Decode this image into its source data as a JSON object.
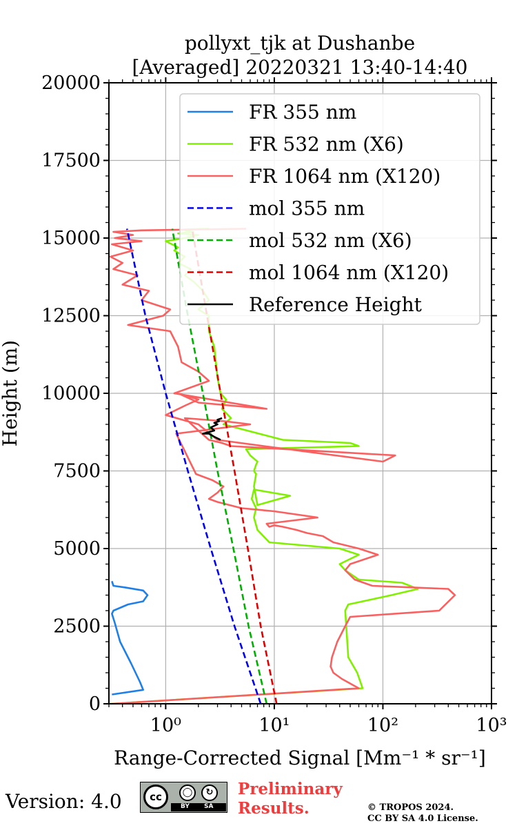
{
  "chart_data": {
    "type": "line",
    "title": "pollyxt_tjk at Dushanbe",
    "subtitle": "[Averaged] 20220321 13:40-14:40",
    "xlabel": "Range-Corrected Signal [Mm⁻¹ * sr⁻¹]",
    "ylabel": "Height (m)",
    "xscale": "log",
    "xlim": [
      0.3,
      1000
    ],
    "ylim": [
      0,
      20000
    ],
    "xticks": [
      "10⁰",
      "10¹",
      "10²",
      "10³"
    ],
    "yticks": [
      "0",
      "2500",
      "5000",
      "7500",
      "10000",
      "12500",
      "15000",
      "17500",
      "20000"
    ],
    "grid": true,
    "legend_position": "top-right",
    "series": [
      {
        "name": "FR 355 nm",
        "color": "#1f7fe8",
        "style": "solid",
        "x": [
          0.32,
          0.62,
          0.58,
          0.48,
          0.38,
          0.34,
          0.32,
          0.33,
          0.45,
          0.62,
          0.68,
          0.62,
          0.42,
          0.33,
          0.32
        ],
        "y": [
          300,
          450,
          700,
          1300,
          2000,
          2600,
          2900,
          3000,
          3200,
          3300,
          3500,
          3650,
          3750,
          3800,
          3950
        ]
      },
      {
        "name": "FR 532 nm (X6)",
        "color": "#80f000",
        "style": "solid",
        "x": [
          0.31,
          65,
          58,
          48,
          46,
          45,
          48,
          120,
          210,
          150,
          60,
          45,
          40,
          60,
          40,
          9,
          7,
          6.5,
          6.8,
          6.2,
          6.5,
          14,
          7,
          6.5,
          6.8,
          6.5,
          6.8,
          7,
          6,
          5.5,
          60,
          50,
          12,
          3.4,
          4,
          3.3,
          3.6,
          3.2,
          3,
          2.9,
          2.8,
          2.5,
          2.5,
          2,
          2.5,
          2.2,
          1.8,
          1.5,
          1.7,
          1.3,
          1.5,
          1.2,
          1.3,
          1,
          1.5,
          2,
          1.3,
          1.8,
          1.5,
          1.5,
          2.5
        ],
        "y": [
          0,
          500,
          1000,
          1500,
          2500,
          3000,
          3200,
          3500,
          3700,
          3900,
          4000,
          4300,
          4500,
          4800,
          5000,
          5200,
          5600,
          6000,
          6300,
          6600,
          6900,
          6700,
          6400,
          7000,
          7400,
          7500,
          7700,
          7800,
          8000,
          8200,
          8300,
          8400,
          8500,
          9000,
          9200,
          9500,
          9800,
          10000,
          10500,
          11000,
          11500,
          12000,
          12500,
          12700,
          13000,
          13300,
          13600,
          13800,
          14000,
          14200,
          14400,
          14600,
          14700,
          14900,
          15000,
          15100,
          15150,
          15200,
          15250,
          15280,
          15300
        ]
      },
      {
        "name": "FR 1064 nm (X120)",
        "color": "#f96060",
        "style": "solid",
        "x": [
          0.32,
          60,
          42,
          35,
          33,
          34,
          38,
          45,
          50,
          330,
          460,
          400,
          80,
          55,
          45,
          50,
          90,
          60,
          35,
          28,
          20,
          16,
          12,
          10,
          9,
          8.5,
          25,
          10,
          5,
          3,
          2.5,
          3,
          3.4,
          2.7,
          1.9,
          1.25,
          6,
          3.5,
          1.5,
          2,
          2.5,
          3.3,
          4,
          130,
          100,
          8,
          3,
          2,
          1,
          1.5,
          2,
          1.3,
          2,
          8.5,
          1.2,
          2.5,
          2,
          1.4,
          1.3,
          1.1,
          0.45,
          0.95,
          1.1,
          0.6,
          0.7,
          0.4,
          0.55,
          0.33,
          0.4,
          0.31,
          0.5,
          0.32,
          0.6,
          0.34,
          0.5,
          0.33,
          0.6,
          5.5
        ],
        "y": [
          0,
          500,
          800,
          1000,
          1200,
          1500,
          2000,
          2500,
          2800,
          3000,
          3500,
          3700,
          3800,
          4000,
          4300,
          4500,
          4800,
          5000,
          5200,
          5400,
          5500,
          5600,
          5700,
          5750,
          5700,
          5800,
          6000,
          6200,
          6300,
          6500,
          6600,
          6800,
          7000,
          7200,
          7400,
          8700,
          9000,
          9100,
          9200,
          8800,
          8500,
          8400,
          8300,
          8000,
          7800,
          8300,
          8500,
          9000,
          9300,
          9600,
          9800,
          10000,
          9700,
          9500,
          10000,
          10400,
          10700,
          11000,
          11500,
          12000,
          12200,
          12500,
          12700,
          13000,
          13300,
          13500,
          13800,
          14000,
          14200,
          14400,
          14600,
          14800,
          14900,
          15000,
          15100,
          15200,
          15250,
          15300
        ]
      },
      {
        "name": "mol 355 nm",
        "color": "#0000ee",
        "style": "dashed",
        "x": [
          7.5,
          4.3,
          2.6,
          1.6,
          1.0,
          0.65,
          0.44
        ],
        "y": [
          0,
          2500,
          5000,
          7500,
          10000,
          12500,
          15300
        ]
      },
      {
        "name": "mol 532 nm (X6)",
        "color": "#00b000",
        "style": "dashed",
        "x": [
          8.5,
          5.8,
          4.2,
          3.0,
          2.2,
          1.6,
          1.15
        ],
        "y": [
          0,
          2500,
          5000,
          7500,
          10000,
          12500,
          15300
        ]
      },
      {
        "name": "mol 1064 nm (X120)",
        "color": "#e00000",
        "style": "dashed",
        "x": [
          10.5,
          7.5,
          5.7,
          4.3,
          3.2,
          2.4,
          1.75
        ],
        "y": [
          0,
          2500,
          5000,
          7500,
          10000,
          12500,
          15300
        ]
      },
      {
        "name": "Reference Height",
        "color": "#000000",
        "style": "solid",
        "x": [
          3.2,
          2.8,
          2.5,
          2.2,
          2.8,
          2.6,
          3.0,
          2.8,
          3.1,
          3.0,
          3.3
        ],
        "y": [
          8500,
          8600,
          8700,
          8700,
          8800,
          8900,
          9000,
          9050,
          9100,
          9150,
          9200
        ]
      }
    ]
  },
  "footer": {
    "version": "Version: 4.0",
    "cc_label": "cc",
    "cc_by": "BY",
    "cc_sa": "SA",
    "preliminary_line1": "Preliminary",
    "preliminary_line2": "Results.",
    "copyright_line1": "© TROPOS 2024.",
    "copyright_line2": "CC BY SA 4.0 License."
  }
}
